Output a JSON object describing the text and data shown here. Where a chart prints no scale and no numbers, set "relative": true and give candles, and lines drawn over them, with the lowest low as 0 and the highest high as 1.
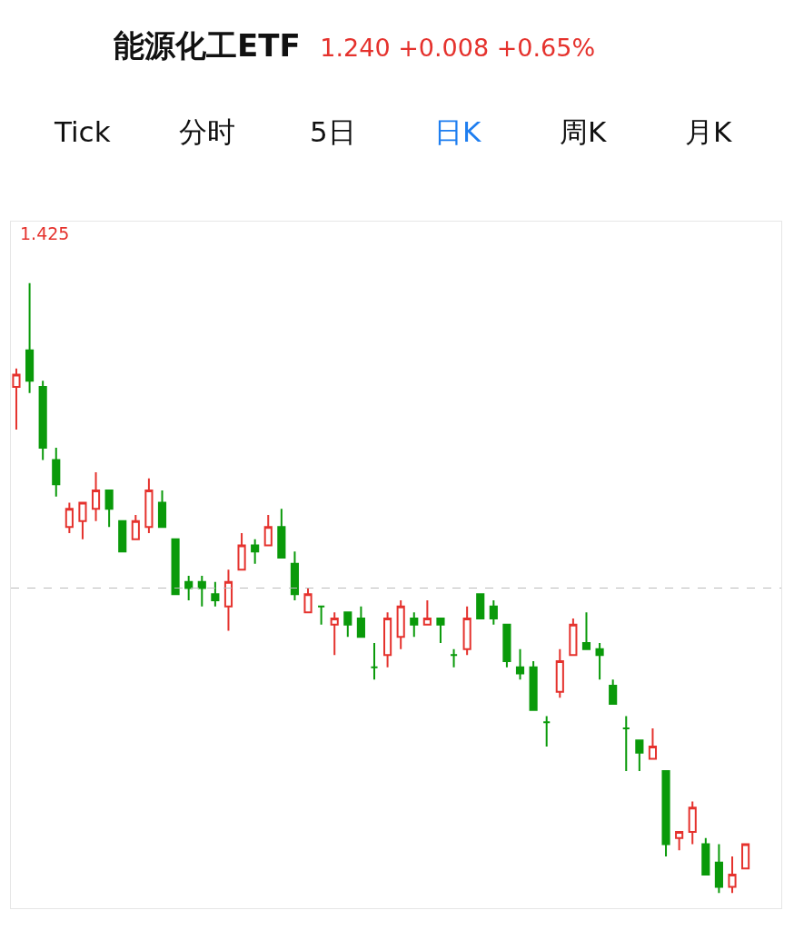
{
  "chart_data": {
    "type": "candlestick",
    "title": "能源化工ETF",
    "subtitle": "1.240 +0.008 +0.65%",
    "relative": true,
    "annotations": [
      "1.425",
      "Tick",
      "分时",
      "5日",
      "日K",
      "周K",
      "月K"
    ],
    "categories": [
      null,
      null,
      null,
      null,
      null,
      null,
      null,
      null,
      null,
      null,
      null,
      null,
      null,
      null,
      null,
      null,
      null,
      null,
      null,
      null,
      null,
      null,
      null,
      null,
      null,
      null,
      null,
      null,
      null,
      null,
      null,
      null,
      null,
      null,
      null,
      null,
      null,
      null,
      null,
      null,
      null,
      null,
      null,
      null,
      null,
      null,
      null,
      null,
      null,
      null,
      null,
      null,
      null,
      null,
      null,
      null
    ],
    "ohlc": [
      [
        0.83,
        0.86,
        0.76,
        0.85
      ],
      [
        0.89,
        1.0,
        0.82,
        0.84
      ],
      [
        0.83,
        0.84,
        0.71,
        0.73
      ],
      [
        0.71,
        0.73,
        0.65,
        0.67
      ],
      [
        0.6,
        0.64,
        0.59,
        0.63
      ],
      [
        0.61,
        0.64,
        0.58,
        0.64
      ],
      [
        0.63,
        0.69,
        0.61,
        0.66
      ],
      [
        0.66,
        0.66,
        0.6,
        0.63
      ],
      [
        0.61,
        0.61,
        0.56,
        0.56
      ],
      [
        0.58,
        0.62,
        0.58,
        0.61
      ],
      [
        0.6,
        0.68,
        0.59,
        0.66
      ],
      [
        0.64,
        0.66,
        0.6,
        0.6
      ],
      [
        0.58,
        0.58,
        0.49,
        0.49
      ],
      [
        0.51,
        0.52,
        0.48,
        0.5
      ],
      [
        0.51,
        0.52,
        0.47,
        0.5
      ],
      [
        0.49,
        0.51,
        0.47,
        0.48
      ],
      [
        0.47,
        0.53,
        0.43,
        0.51
      ],
      [
        0.53,
        0.59,
        0.53,
        0.57
      ],
      [
        0.57,
        0.58,
        0.54,
        0.56
      ],
      [
        0.57,
        0.62,
        0.57,
        0.6
      ],
      [
        0.6,
        0.63,
        0.55,
        0.55
      ],
      [
        0.54,
        0.56,
        0.48,
        0.49
      ],
      [
        0.46,
        0.5,
        0.46,
        0.49
      ],
      [
        0.47,
        0.47,
        0.44,
        0.47
      ],
      [
        0.44,
        0.46,
        0.39,
        0.45
      ],
      [
        0.46,
        0.46,
        0.42,
        0.44
      ],
      [
        0.45,
        0.47,
        0.42,
        0.42
      ],
      [
        0.37,
        0.41,
        0.35,
        0.37
      ],
      [
        0.39,
        0.46,
        0.37,
        0.45
      ],
      [
        0.42,
        0.48,
        0.4,
        0.47
      ],
      [
        0.45,
        0.46,
        0.42,
        0.44
      ],
      [
        0.44,
        0.48,
        0.44,
        0.45
      ],
      [
        0.45,
        0.45,
        0.41,
        0.44
      ],
      [
        0.39,
        0.4,
        0.37,
        0.39
      ],
      [
        0.4,
        0.47,
        0.39,
        0.45
      ],
      [
        0.49,
        0.49,
        0.45,
        0.45
      ],
      [
        0.47,
        0.48,
        0.44,
        0.45
      ],
      [
        0.44,
        0.44,
        0.37,
        0.38
      ],
      [
        0.37,
        0.4,
        0.35,
        0.36
      ],
      [
        0.37,
        0.38,
        0.3,
        0.3
      ],
      [
        0.28,
        0.29,
        0.24,
        0.28
      ],
      [
        0.33,
        0.4,
        0.32,
        0.38
      ],
      [
        0.39,
        0.45,
        0.39,
        0.44
      ],
      [
        0.41,
        0.46,
        0.4,
        0.4
      ],
      [
        0.4,
        0.41,
        0.35,
        0.39
      ],
      [
        0.34,
        0.35,
        0.31,
        0.31
      ],
      [
        0.27,
        0.29,
        0.2,
        0.27
      ],
      [
        0.25,
        0.25,
        0.2,
        0.23
      ],
      [
        0.22,
        0.27,
        0.22,
        0.24
      ],
      [
        0.2,
        0.2,
        0.06,
        0.08
      ],
      [
        0.09,
        0.1,
        0.07,
        0.1
      ],
      [
        0.1,
        0.15,
        0.08,
        0.14
      ],
      [
        0.08,
        0.09,
        0.03,
        0.03
      ],
      [
        0.05,
        0.08,
        0.0,
        0.01
      ],
      [
        0.01,
        0.06,
        0.0,
        0.03
      ],
      [
        0.04,
        0.08,
        0.04,
        0.08
      ]
    ],
    "ref_lines": [
      {
        "axis": "y",
        "value": 0.5,
        "color": "#bbbbbb",
        "line_style": "dashed"
      }
    ]
  }
}
